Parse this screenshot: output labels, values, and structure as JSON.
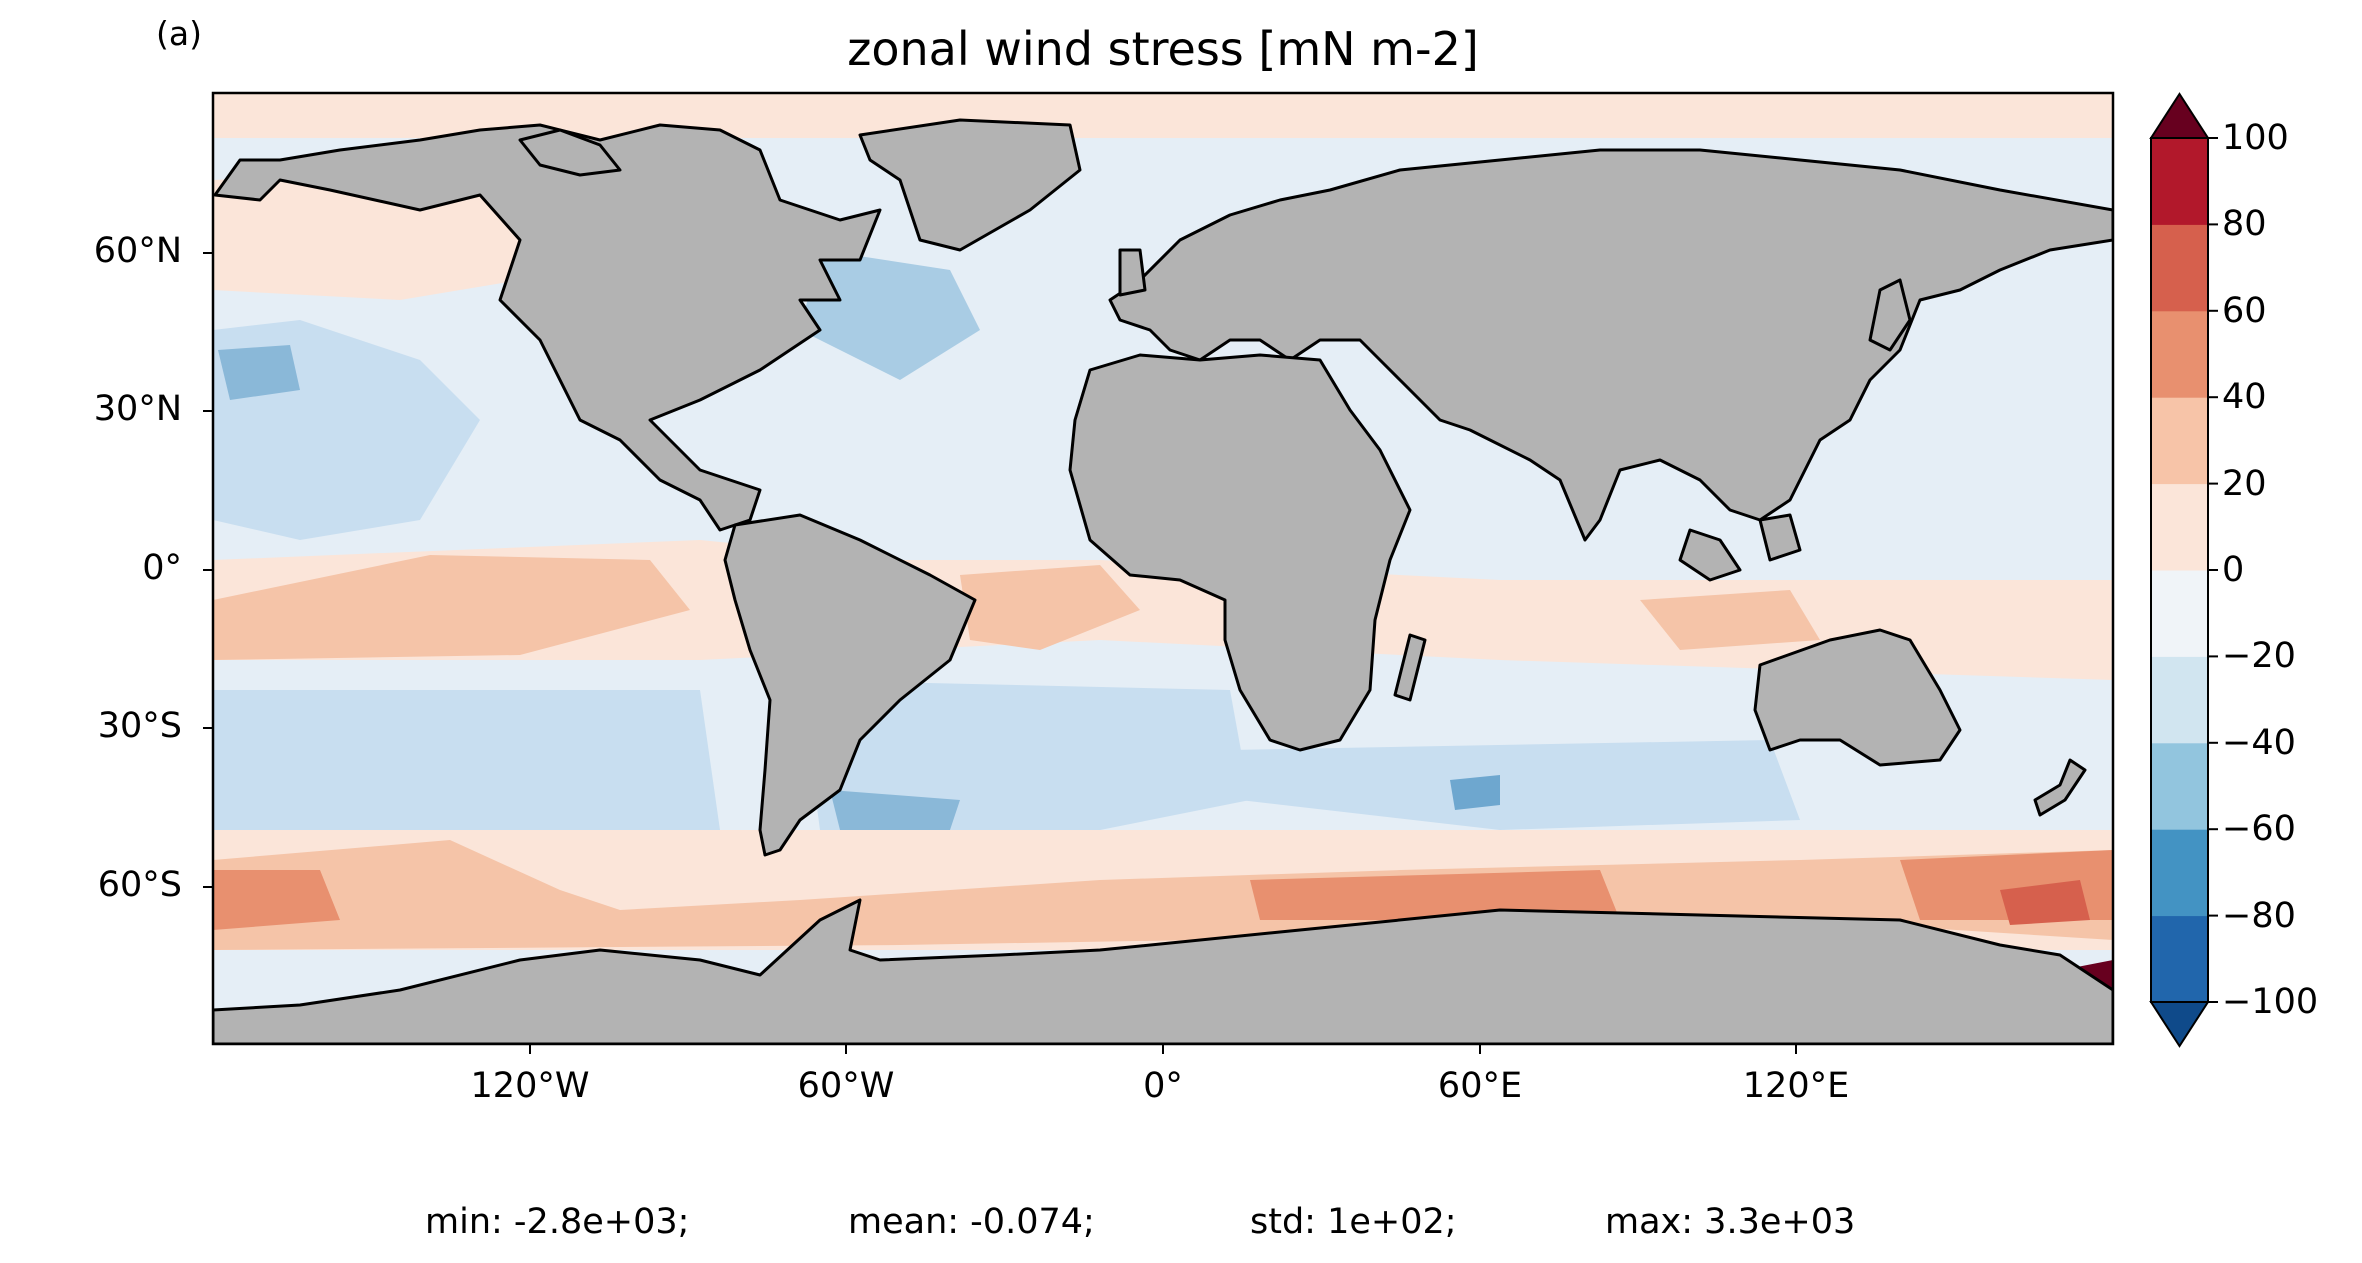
{
  "panel_label": "(a)",
  "title": "zonal wind stress [mN m-2]",
  "map": {
    "projection": "equirectangular",
    "land_color": "#b3b3b3",
    "coastline_color": "#000000",
    "lat_ticks": [
      "60°N",
      "30°N",
      "0°",
      "30°S",
      "60°S"
    ],
    "lon_ticks": [
      "120°W",
      "60°W",
      "0°",
      "60°E",
      "120°E"
    ],
    "lat_values": [
      60,
      30,
      0,
      -30,
      -60
    ],
    "lon_values": [
      -120,
      -60,
      0,
      60,
      120
    ],
    "lon_range": [
      -180,
      180
    ],
    "lat_range": [
      -90,
      90
    ]
  },
  "colorbar": {
    "orientation": "vertical",
    "extend": "both",
    "tick_labels": [
      "100",
      "80",
      "60",
      "40",
      "20",
      "0",
      "−20",
      "−40",
      "−60",
      "−80",
      "−100"
    ],
    "levels": [
      -100,
      -80,
      -60,
      -40,
      -20,
      0,
      20,
      40,
      60,
      80,
      100
    ],
    "colors": [
      "#0f4a8a",
      "#2166ac",
      "#4393c3",
      "#92c5de",
      "#d1e5f0",
      "#f0f4f8",
      "#fbe5d9",
      "#f7c4a8",
      "#e8906f",
      "#d6604d",
      "#b2182b",
      "#67001f"
    ]
  },
  "stats": {
    "min": "min: -2.8e+03;",
    "mean": "mean: -0.074;",
    "std": "std: 1e+02;",
    "max": "max: 3.3e+03"
  }
}
